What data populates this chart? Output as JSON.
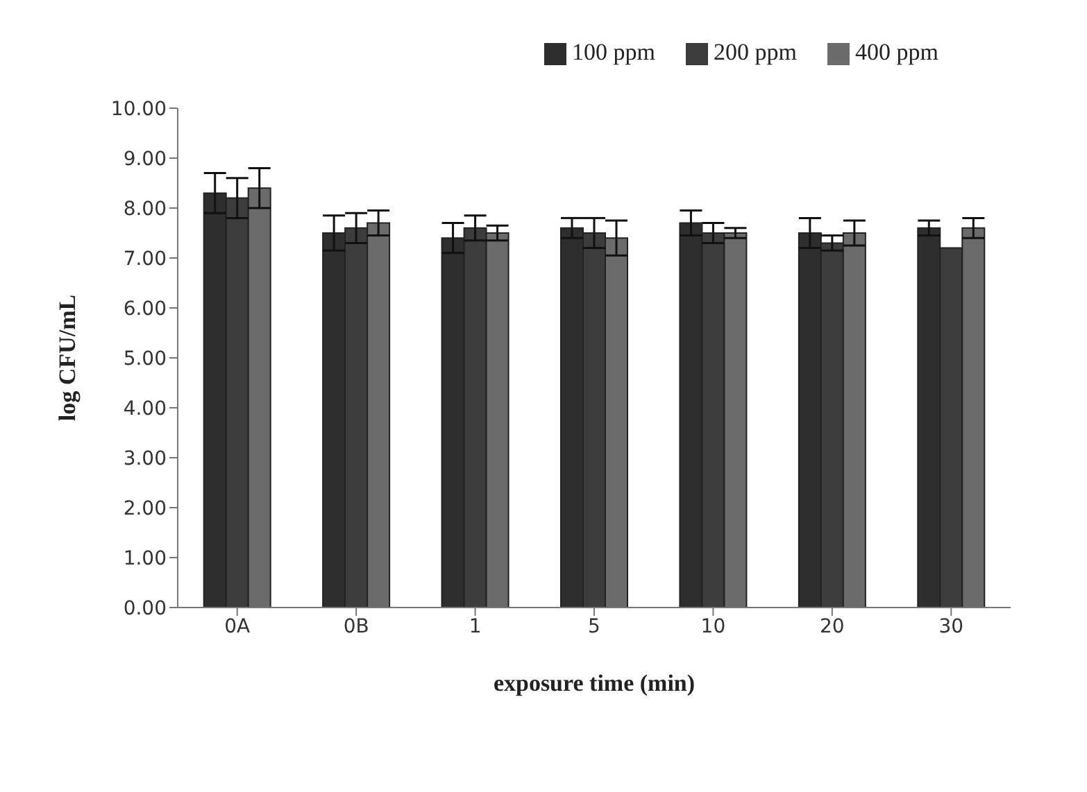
{
  "chart_data": {
    "type": "bar",
    "xlabel": "exposure time (min)",
    "ylabel": "log CFU/mL",
    "categories": [
      "0A",
      "0B",
      "1",
      "5",
      "10",
      "20",
      "30"
    ],
    "series": [
      {
        "name": "100 ppm",
        "color": "#2e2e2e",
        "values": [
          8.3,
          7.5,
          7.4,
          7.6,
          7.7,
          7.5,
          7.6
        ],
        "errors": [
          0.4,
          0.35,
          0.3,
          0.2,
          0.25,
          0.3,
          0.15
        ]
      },
      {
        "name": "200 ppm",
        "color": "#3c3c3c",
        "values": [
          8.2,
          7.6,
          7.6,
          7.5,
          7.5,
          7.3,
          7.2
        ],
        "errors": [
          0.4,
          0.3,
          0.25,
          0.3,
          0.2,
          0.15,
          null
        ]
      },
      {
        "name": "400 ppm",
        "color": "#6b6b6b",
        "values": [
          8.4,
          7.7,
          7.5,
          7.4,
          7.5,
          7.5,
          7.6
        ],
        "errors": [
          0.4,
          0.25,
          0.15,
          0.35,
          0.1,
          0.25,
          0.2
        ]
      }
    ],
    "ylim": [
      0,
      10
    ],
    "yticks": [
      {
        "value": 0,
        "label": "0.00"
      },
      {
        "value": 1,
        "label": "1.00"
      },
      {
        "value": 2,
        "label": "2.00"
      },
      {
        "value": 3,
        "label": "3.00"
      },
      {
        "value": 4,
        "label": "4.00"
      },
      {
        "value": 5,
        "label": "5.00"
      },
      {
        "value": 6,
        "label": "6.00"
      },
      {
        "value": 7,
        "label": "7.00"
      },
      {
        "value": 8,
        "label": "8.00"
      },
      {
        "value": 9,
        "label": "9.00"
      },
      {
        "value": 10,
        "label": "10.00"
      }
    ],
    "grid": false,
    "legend": "top right"
  }
}
